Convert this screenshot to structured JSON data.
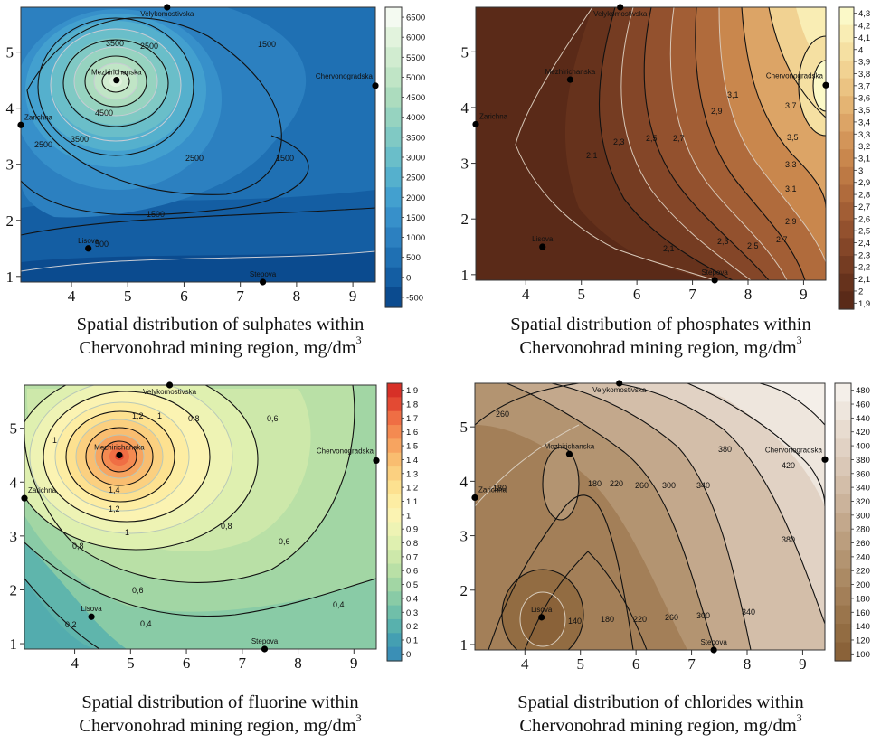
{
  "chart_data": [
    {
      "type": "contour",
      "caption_line1": "Spatial distribution of sulphates within",
      "caption_line2": "Chervonohrad mining region, mg/dm",
      "caption_sup": "3",
      "xlim": [
        3.1,
        9.4
      ],
      "ylim": [
        0.9,
        5.8
      ],
      "x_ticks": [
        "4",
        "5",
        "6",
        "7",
        "8",
        "9"
      ],
      "y_ticks": [
        "1",
        "2",
        "3",
        "4",
        "5"
      ],
      "colorbar_ticks": [
        "6500",
        "6000",
        "5500",
        "5000",
        "4500",
        "4000",
        "3500",
        "3000",
        "2500",
        "2000",
        "1500",
        "1000",
        "500",
        "0",
        "-500"
      ],
      "colorbar_colors": [
        "#f4faf1",
        "#e2f3dd",
        "#d1ecd0",
        "#c0e5c6",
        "#acdcbe",
        "#96d3c0",
        "#80c9c4",
        "#6abec9",
        "#55b0cd",
        "#43a0cf",
        "#3790ca",
        "#2c80c0",
        "#1f70b3",
        "#145ea3",
        "#0b4b8f"
      ],
      "contour_labels": [
        "4500",
        "3500",
        "2500",
        "1500",
        "3500",
        "2500",
        "1500",
        "1500",
        "2500",
        "500"
      ],
      "wells": [
        {
          "name": "Velykomostivska",
          "x": 5.7,
          "y": 5.8
        },
        {
          "name": "Mezhirichanska",
          "x": 4.8,
          "y": 4.5
        },
        {
          "name": "Chervonogradska",
          "x": 9.4,
          "y": 4.4
        },
        {
          "name": "Zarichna",
          "x": 3.1,
          "y": 3.7
        },
        {
          "name": "Lisova",
          "x": 4.3,
          "y": 1.5
        },
        {
          "name": "Stepova",
          "x": 7.4,
          "y": 0.9
        }
      ]
    },
    {
      "type": "contour",
      "caption_line1": "Spatial distribution of phosphates within",
      "caption_line2": "Chervonohrad mining region, mg/dm",
      "caption_sup": "3",
      "xlim": [
        3.1,
        9.4
      ],
      "ylim": [
        0.9,
        5.8
      ],
      "x_ticks": [
        "4",
        "5",
        "6",
        "7",
        "8",
        "9"
      ],
      "y_ticks": [
        "1",
        "2",
        "3",
        "4",
        "5"
      ],
      "colorbar_ticks": [
        "4,3",
        "4,2",
        "4,1",
        "4",
        "3,9",
        "3,8",
        "3,7",
        "3,6",
        "3,5",
        "3,4",
        "3,3",
        "3,2",
        "3,1",
        "3",
        "2,9",
        "2,8",
        "2,7",
        "2,6",
        "2,5",
        "2,4",
        "2,3",
        "2,2",
        "2,1",
        "2",
        "1,9"
      ],
      "colorbar_colors": [
        "#fbf9c8",
        "#f9edb4",
        "#f5e0a2",
        "#f1d292",
        "#ebc382",
        "#e4b473",
        "#dca466",
        "#d39559",
        "#c9874d",
        "#bd7944",
        "#b06b3c",
        "#a25e35",
        "#93512e",
        "#844628",
        "#753c22",
        "#66321c",
        "#5a2a18"
      ],
      "contour_labels": [
        "2,1",
        "2,3",
        "2,5",
        "2,7",
        "2,9",
        "3,1",
        "3,7",
        "3,5",
        "3,3",
        "3,1",
        "2,9",
        "2,7",
        "2,5",
        "2,3",
        "2,1"
      ],
      "wells": [
        {
          "name": "Velykomostivska",
          "x": 5.7,
          "y": 5.8
        },
        {
          "name": "Mezhirichanska",
          "x": 4.8,
          "y": 4.5
        },
        {
          "name": "Chervonogradska",
          "x": 9.4,
          "y": 4.4
        },
        {
          "name": "Zarichna",
          "x": 3.1,
          "y": 3.7
        },
        {
          "name": "Lisova",
          "x": 4.3,
          "y": 1.5
        },
        {
          "name": "Stepova",
          "x": 7.4,
          "y": 0.9
        }
      ]
    },
    {
      "type": "contour",
      "caption_line1": "Spatial distribution of fluorine within",
      "caption_line2": "Chervonohrad mining region, mg/dm",
      "caption_sup": "3",
      "xlim": [
        3.1,
        9.4
      ],
      "ylim": [
        0.9,
        5.8
      ],
      "x_ticks": [
        "4",
        "5",
        "6",
        "7",
        "8",
        "9"
      ],
      "y_ticks": [
        "1",
        "2",
        "3",
        "4",
        "5"
      ],
      "colorbar_ticks": [
        "1,9",
        "1,8",
        "1,7",
        "1,6",
        "1,5",
        "1,4",
        "1,3",
        "1,2",
        "1,1",
        "1",
        "0,9",
        "0,8",
        "0,7",
        "0,6",
        "0,5",
        "0,4",
        "0,3",
        "0,2",
        "0,1",
        "0"
      ],
      "colorbar_colors": [
        "#d73027",
        "#e34a33",
        "#ef6e44",
        "#f48a51",
        "#f7a460",
        "#f9bd70",
        "#fbd080",
        "#fde190",
        "#fdeda3",
        "#fbf3b2",
        "#eef3b4",
        "#dff0b0",
        "#cde8aa",
        "#b9e0a6",
        "#a2d6a4",
        "#89cba6",
        "#70bfa9",
        "#58b1ad",
        "#449fb2",
        "#3a8fb6"
      ],
      "contour_labels": [
        "1,2",
        "1",
        "0,8",
        "0,6",
        "1",
        "1,4",
        "1,2",
        "1",
        "0,8",
        "0,6",
        "0,8",
        "0,6",
        "0,4",
        "0,2",
        "0,4"
      ],
      "wells": [
        {
          "name": "Velykomostivska",
          "x": 5.7,
          "y": 5.8
        },
        {
          "name": "Mezhirichanska",
          "x": 4.8,
          "y": 4.5
        },
        {
          "name": "Chervonogradska",
          "x": 9.4,
          "y": 4.4
        },
        {
          "name": "Zarichna",
          "x": 3.1,
          "y": 3.7
        },
        {
          "name": "Lisova",
          "x": 4.3,
          "y": 1.5
        },
        {
          "name": "Stepova",
          "x": 7.4,
          "y": 0.9
        }
      ]
    },
    {
      "type": "contour",
      "caption_line1": "Spatial distribution of chlorides within",
      "caption_line2": "Chervonohrad mining region, mg/dm",
      "caption_sup": "3",
      "xlim": [
        3.1,
        9.4
      ],
      "ylim": [
        0.9,
        5.8
      ],
      "x_ticks": [
        "4",
        "5",
        "6",
        "7",
        "8",
        "9"
      ],
      "y_ticks": [
        "1",
        "2",
        "3",
        "4",
        "5"
      ],
      "colorbar_ticks": [
        "480",
        "460",
        "440",
        "420",
        "400",
        "380",
        "360",
        "340",
        "320",
        "300",
        "280",
        "260",
        "240",
        "220",
        "200",
        "180",
        "160",
        "140",
        "120",
        "100"
      ],
      "colorbar_colors": [
        "#f4efe9",
        "#eee6dd",
        "#e8dcd0",
        "#e1d2c4",
        "#dac8b7",
        "#d3bea9",
        "#cbb39b",
        "#c3a88c",
        "#bb9e7e",
        "#b39471",
        "#ab8a64",
        "#a37f58",
        "#9a754c",
        "#926c42",
        "#8a6239"
      ],
      "contour_labels": [
        "260",
        "180",
        "180",
        "220",
        "260",
        "300",
        "340",
        "380",
        "420",
        "380",
        "140",
        "180",
        "220",
        "260",
        "300",
        "340"
      ],
      "wells": [
        {
          "name": "Velykomostivska",
          "x": 5.7,
          "y": 5.8
        },
        {
          "name": "Mezhirichanska",
          "x": 4.8,
          "y": 4.5
        },
        {
          "name": "Chervonogradska",
          "x": 9.4,
          "y": 4.4
        },
        {
          "name": "Zarichna",
          "x": 3.1,
          "y": 3.7
        },
        {
          "name": "Lisova",
          "x": 4.3,
          "y": 1.5
        },
        {
          "name": "Stepova",
          "x": 7.4,
          "y": 0.9
        }
      ]
    }
  ]
}
